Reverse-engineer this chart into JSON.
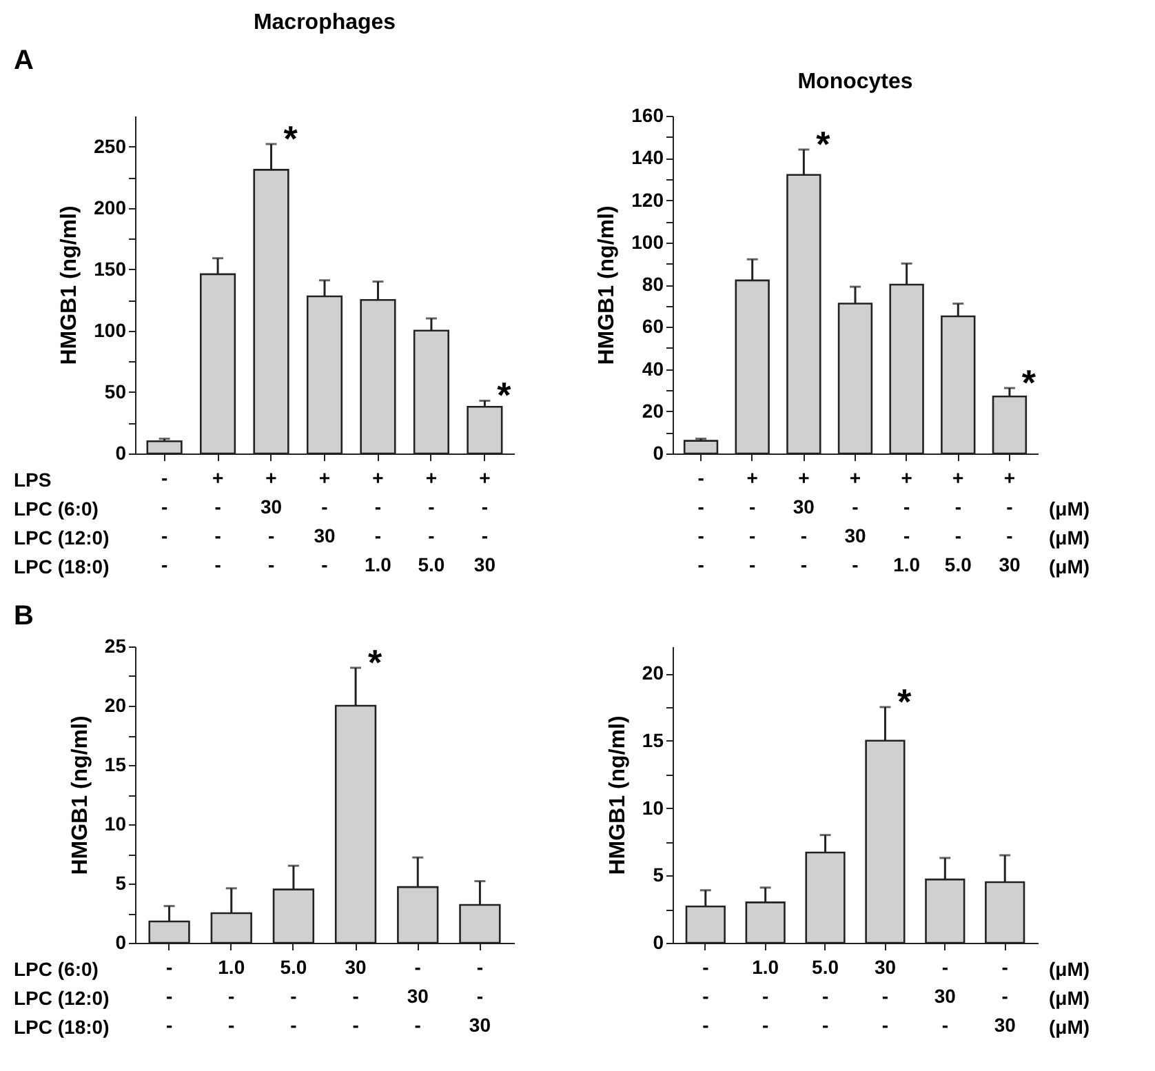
{
  "chart_data": [
    {
      "type": "bar",
      "title": "Macrophages",
      "ylabel": "HMGB1 (ng/ml)",
      "color": "#d0d0d0",
      "categories": [
        "-\n-\n-\n-",
        "+\n-\n-\n-",
        "+\n30\n-\n-",
        "+\n-\n30\n-",
        "+\n-\n-\n1.0",
        "+\n-\n-\n5.0",
        "+\n-\n-\n30"
      ],
      "values": [
        10,
        146,
        231,
        128,
        125,
        100,
        38
      ],
      "errors": [
        [
          10,
          12
        ],
        [
          146,
          159
        ],
        [
          231,
          252
        ],
        [
          128,
          141
        ],
        [
          125,
          140
        ],
        [
          100,
          110
        ],
        [
          38,
          43
        ]
      ],
      "ylim": [
        0,
        275
      ],
      "yticks": [
        0,
        {
          "value": 25,
          "label": null
        },
        50,
        {
          "value": 75,
          "label": null
        },
        100,
        {
          "value": 125,
          "label": null
        },
        150,
        {
          "value": 175,
          "label": null
        },
        200,
        {
          "value": 225,
          "label": null
        },
        250
      ],
      "annotations": [
        "A",
        "LPS",
        "LPC (6:0)",
        "LPC (12:0)",
        "LPC (18:0)",
        {
          "text": "*",
          "x": "+\n30\n-\n-",
          "y": 252
        },
        {
          "text": "*",
          "x": "+\n-\n-\n30",
          "y": 43
        }
      ]
    },
    {
      "type": "bar",
      "title": "Monocytes",
      "ylabel": "HMGB1 (ng/ml)",
      "color": "#d0d0d0",
      "categories": [
        "-\n-\n-\n-",
        "+\n-\n-\n-",
        "+\n30\n-\n-",
        "+\n-\n30\n-",
        "+\n-\n-\n1.0",
        "+\n-\n-\n5.0",
        "+\n-\n-\n30"
      ],
      "values": [
        6,
        82,
        132,
        71,
        80,
        65,
        27
      ],
      "errors": [
        [
          6,
          7
        ],
        [
          82,
          92
        ],
        [
          132,
          144
        ],
        [
          71,
          79
        ],
        [
          80,
          90
        ],
        [
          65,
          71
        ],
        [
          27,
          31
        ]
      ],
      "ylim": [
        0,
        160
      ],
      "yticks": [
        0,
        {
          "value": 10,
          "label": null
        },
        20,
        {
          "value": 30,
          "label": null
        },
        40,
        {
          "value": 50,
          "label": null
        },
        60,
        {
          "value": 70,
          "label": null
        },
        80,
        {
          "value": 90,
          "label": null
        },
        100,
        {
          "value": 110,
          "label": null
        },
        120,
        {
          "value": 130,
          "label": null
        },
        140,
        {
          "value": 150,
          "label": null
        },
        160
      ],
      "annotations": [
        "(μM)",
        "(μM)",
        "(μM)",
        {
          "text": "*",
          "x": "+\n30\n-\n-",
          "y": 144
        },
        {
          "text": "*",
          "x": "+\n-\n-\n30",
          "y": 31
        }
      ]
    },
    {
      "type": "bar",
      "ylabel": "HMGB1 (ng/ml)",
      "color": "#d0d0d0",
      "categories": [
        "-\n-\n-",
        "1.0\n-\n-",
        "5.0\n-\n-",
        "30\n-\n-",
        "-\n30\n-",
        "-\n-\n30"
      ],
      "values": [
        1.8,
        2.5,
        4.5,
        20,
        4.7,
        3.2
      ],
      "errors": [
        [
          1.8,
          3.1
        ],
        [
          2.5,
          4.6
        ],
        [
          4.5,
          6.5
        ],
        [
          20,
          23.2
        ],
        [
          4.7,
          7.2
        ],
        [
          3.2,
          5.2
        ]
      ],
      "ylim": [
        0,
        25
      ],
      "yticks": [
        0,
        {
          "value": 2.5,
          "label": null
        },
        5,
        {
          "value": 7.5,
          "label": null
        },
        10,
        {
          "value": 12.5,
          "label": null
        },
        15,
        {
          "value": 17.5,
          "label": null
        },
        20,
        {
          "value": 22.5,
          "label": null
        },
        25
      ],
      "annotations": [
        "B",
        "LPC (6:0)",
        "LPC (12:0)",
        "LPC (18:0)",
        {
          "text": "*",
          "x": "30\n-\n-",
          "y": 23.2
        }
      ]
    },
    {
      "type": "bar",
      "ylabel": "HMGB1 (ng/ml)",
      "color": "#d0d0d0",
      "categories": [
        "-\n-\n-",
        "1.0\n-\n-",
        "5.0\n-\n-",
        "30\n-\n-",
        "-\n30\n-",
        "-\n-\n30"
      ],
      "values": [
        2.7,
        3.0,
        6.7,
        15,
        4.7,
        4.5
      ],
      "errors": [
        [
          2.7,
          3.9
        ],
        [
          3.0,
          4.1
        ],
        [
          6.7,
          8.0
        ],
        [
          15,
          17.5
        ],
        [
          4.7,
          6.3
        ],
        [
          4.5,
          6.5
        ]
      ],
      "ylim": [
        0,
        22
      ],
      "yticks": [
        0,
        {
          "value": 2.5,
          "label": null
        },
        5,
        {
          "value": 7.5,
          "label": null
        },
        10,
        {
          "value": 12.5,
          "label": null
        },
        15,
        {
          "value": 17.5,
          "label": null
        },
        20
      ],
      "annotations": [
        "(μM)",
        "(μM)",
        "(μM)",
        {
          "text": "*",
          "x": "30\n-\n-",
          "y": 17.5
        }
      ]
    }
  ]
}
